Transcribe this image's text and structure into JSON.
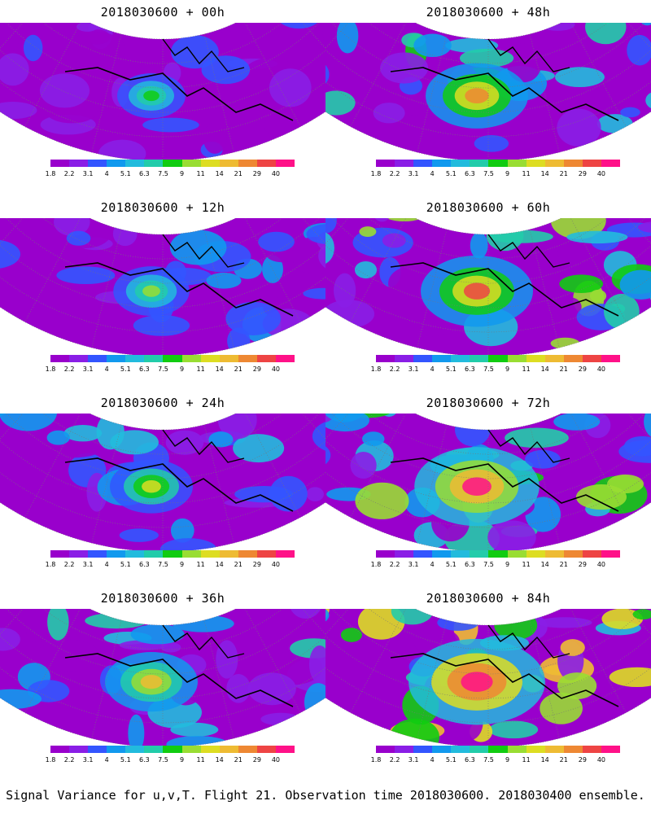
{
  "panels": [
    {
      "title": "2018030600 + 00h",
      "lead_hours": 0,
      "intensity": 0.1
    },
    {
      "title": "2018030600 + 48h",
      "lead_hours": 48,
      "intensity": 0.45
    },
    {
      "title": "2018030600 + 12h",
      "lead_hours": 12,
      "intensity": 0.18
    },
    {
      "title": "2018030600 + 60h",
      "lead_hours": 60,
      "intensity": 0.55
    },
    {
      "title": "2018030600 + 24h",
      "lead_hours": 24,
      "intensity": 0.25
    },
    {
      "title": "2018030600 + 72h",
      "lead_hours": 72,
      "intensity": 0.68
    },
    {
      "title": "2018030600 + 36h",
      "lead_hours": 36,
      "intensity": 0.35
    },
    {
      "title": "2018030600 + 84h",
      "lead_hours": 84,
      "intensity": 0.8
    }
  ],
  "colorbar": {
    "labels": [
      "1.8",
      "2.2",
      "3.1",
      "4",
      "5.1",
      "6.3",
      "7.5",
      "9",
      "11",
      "14",
      "21",
      "29",
      "40"
    ],
    "colors": [
      "#9900cc",
      "#8a1ee6",
      "#3355ff",
      "#1199ee",
      "#22bbdd",
      "#22ccaa",
      "#11cc11",
      "#99dd33",
      "#dddd22",
      "#eebb33",
      "#ee8833",
      "#ee4444",
      "#ff1188"
    ]
  },
  "caption": "Signal Variance for u,v,T. Flight 21. Observation time 2018030600. 2018030400 ensemble."
}
